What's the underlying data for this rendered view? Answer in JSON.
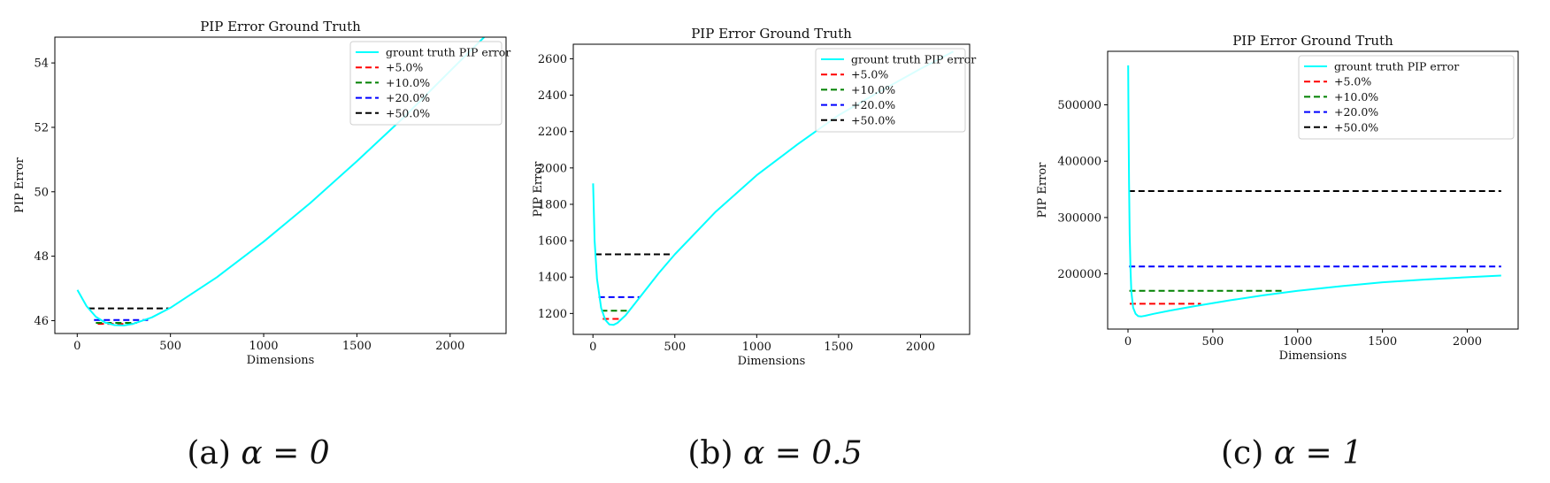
{
  "chart_data": [
    {
      "type": "line",
      "title": "PIP Error Ground Truth",
      "xlabel": "Dimensions",
      "ylabel": "PIP Error",
      "xlim": [
        -120,
        2300
      ],
      "ylim": [
        45.6,
        54.8
      ],
      "xticks": [
        0,
        500,
        1000,
        1500,
        2000
      ],
      "yticks": [
        46,
        48,
        50,
        52,
        54
      ],
      "grid": false,
      "legend_position": "top-right",
      "caption": {
        "label": "(a)",
        "math": "α = 0"
      },
      "series": [
        {
          "name": "grount truth PIP error",
          "color": "#00ffff",
          "style": "solid",
          "x": [
            1,
            50,
            100,
            150,
            200,
            250,
            300,
            400,
            500,
            750,
            1000,
            1250,
            1500,
            1750,
            2000,
            2200
          ],
          "y": [
            46.95,
            46.45,
            46.12,
            45.94,
            45.86,
            45.85,
            45.9,
            46.1,
            46.4,
            47.35,
            48.45,
            49.65,
            50.95,
            52.3,
            53.75,
            54.9
          ]
        }
      ],
      "thresholds": [
        {
          "name": "+5.0%",
          "color": "#ff0000",
          "y": 45.9,
          "x": [
            110,
            300
          ]
        },
        {
          "name": "+10.0%",
          "color": "#008000",
          "y": 45.93,
          "x": [
            100,
            320
          ]
        },
        {
          "name": "+20.0%",
          "color": "#0000ff",
          "y": 46.02,
          "x": [
            90,
            380
          ]
        },
        {
          "name": "+50.0%",
          "color": "#000000",
          "y": 46.38,
          "x": [
            60,
            490
          ]
        }
      ]
    },
    {
      "type": "line",
      "title": "PIP Error Ground Truth",
      "xlabel": "Dimensions",
      "ylabel": "PIP Error",
      "xlim": [
        -120,
        2300
      ],
      "ylim": [
        1085,
        2680
      ],
      "xticks": [
        0,
        500,
        1000,
        1500,
        2000
      ],
      "yticks": [
        1200,
        1400,
        1600,
        1800,
        2000,
        2200,
        2400,
        2600
      ],
      "grid": false,
      "legend_position": "top-right",
      "caption": {
        "label": "(b)",
        "math": "α = 0.5"
      },
      "series": [
        {
          "name": "grount truth PIP error",
          "color": "#00ffff",
          "style": "solid",
          "x": [
            1,
            10,
            25,
            50,
            75,
            100,
            125,
            150,
            200,
            300,
            400,
            500,
            750,
            1000,
            1250,
            1500,
            1750,
            2000,
            2200
          ],
          "y": [
            1915,
            1600,
            1390,
            1230,
            1165,
            1140,
            1137,
            1148,
            1190,
            1305,
            1420,
            1525,
            1760,
            1960,
            2130,
            2290,
            2420,
            2545,
            2640
          ]
        }
      ],
      "thresholds": [
        {
          "name": "+5.0%",
          "color": "#ff0000",
          "y": 1170,
          "x": [
            60,
            170
          ]
        },
        {
          "name": "+10.0%",
          "color": "#008000",
          "y": 1215,
          "x": [
            50,
            210
          ]
        },
        {
          "name": "+20.0%",
          "color": "#0000ff",
          "y": 1290,
          "x": [
            35,
            290
          ]
        },
        {
          "name": "+50.0%",
          "color": "#000000",
          "y": 1525,
          "x": [
            15,
            490
          ]
        }
      ]
    },
    {
      "type": "line",
      "title": "PIP Error Ground Truth",
      "xlabel": "Dimensions",
      "ylabel": "PIP Error",
      "xlim": [
        -120,
        2300
      ],
      "ylim": [
        102000,
        595000
      ],
      "xticks": [
        0,
        500,
        1000,
        1500,
        2000
      ],
      "yticks": [
        200000,
        300000,
        400000,
        500000
      ],
      "grid": false,
      "legend_position": "top-right",
      "caption": {
        "label": "(c)",
        "math": "α = 1"
      },
      "series": [
        {
          "name": "grount truth PIP error",
          "color": "#00ffff",
          "style": "solid",
          "x": [
            1,
            3,
            6,
            10,
            15,
            20,
            30,
            45,
            60,
            80,
            100,
            150,
            250,
            400,
            600,
            800,
            1000,
            1250,
            1500,
            1750,
            2000,
            2200
          ],
          "y": [
            570000,
            470000,
            360000,
            270000,
            205000,
            168000,
            140000,
            129000,
            125000,
            124500,
            125500,
            129000,
            135000,
            143000,
            153000,
            162000,
            170000,
            178000,
            185000,
            190000,
            194000,
            197000
          ]
        }
      ],
      "thresholds": [
        {
          "name": "+5.0%",
          "color": "#ff0000",
          "y": 147000,
          "x": [
            10,
            430
          ]
        },
        {
          "name": "+10.0%",
          "color": "#008000",
          "y": 170000,
          "x": [
            8,
            920
          ]
        },
        {
          "name": "+20.0%",
          "color": "#0000ff",
          "y": 213000,
          "x": [
            6,
            2200
          ]
        },
        {
          "name": "+50.0%",
          "color": "#000000",
          "y": 347000,
          "x": [
            4,
            2200
          ]
        }
      ]
    }
  ]
}
